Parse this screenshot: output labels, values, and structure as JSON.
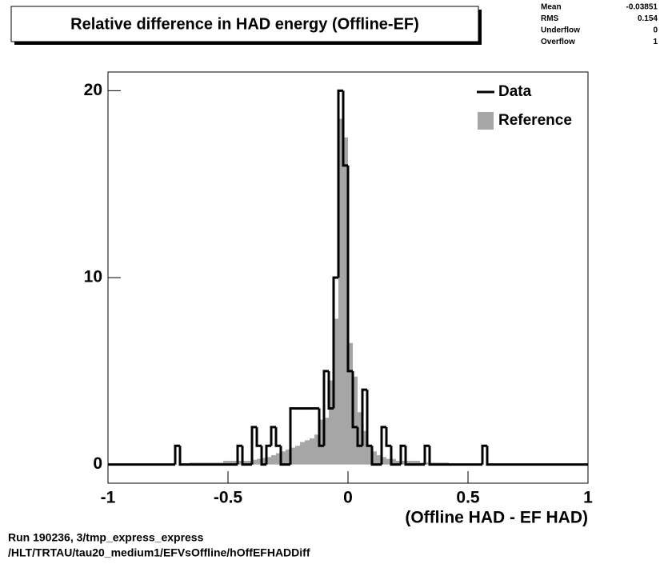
{
  "chart_data": {
    "type": "histogram",
    "title": "Relative difference in HAD energy (Offline-EF)",
    "x_label": "(Offline HAD - EF HAD)",
    "bins": [
      -1,
      -0.98,
      -0.96,
      -0.94,
      -0.92,
      -0.9,
      -0.88,
      -0.86,
      -0.84,
      -0.82,
      -0.8,
      -0.78,
      -0.76,
      -0.74,
      -0.72,
      -0.7,
      -0.68,
      -0.66,
      -0.64,
      -0.62,
      -0.6,
      -0.58,
      -0.56,
      -0.54,
      -0.52,
      -0.5,
      -0.48,
      -0.46,
      -0.44,
      -0.42,
      -0.4,
      -0.38,
      -0.36,
      -0.34,
      -0.32,
      -0.3,
      -0.28,
      -0.26,
      -0.24,
      -0.22,
      -0.2,
      -0.18,
      -0.16,
      -0.14,
      -0.12,
      -0.1,
      -0.08,
      -0.06,
      -0.04,
      -0.02,
      0,
      0.02,
      0.04,
      0.06,
      0.08,
      0.1,
      0.12,
      0.14,
      0.16,
      0.18,
      0.2,
      0.22,
      0.24,
      0.26,
      0.28,
      0.3,
      0.32,
      0.34,
      0.36,
      0.38,
      0.4,
      0.42,
      0.44,
      0.46,
      0.48,
      0.5,
      0.52,
      0.54,
      0.56,
      0.58,
      0.6,
      0.62,
      0.64,
      0.66,
      0.68,
      0.7,
      0.72,
      0.74,
      0.76,
      0.78,
      0.8,
      0.82,
      0.84,
      0.86,
      0.88,
      0.9,
      0.92,
      0.94,
      0.96,
      0.98,
      1
    ],
    "series": [
      {
        "name": "Reference",
        "color": "#a6a6a6",
        "style": "filled",
        "values": [
          0,
          0,
          0,
          0,
          0,
          0,
          0,
          0,
          0,
          0,
          0,
          0,
          0,
          0,
          0,
          0,
          0,
          0.1,
          0.1,
          0.1,
          0.1,
          0.1,
          0.1,
          0.1,
          0.2,
          0.2,
          0.2,
          0.2,
          0.2,
          0.2,
          0.25,
          0.3,
          0.35,
          0.4,
          0.5,
          0.6,
          0.7,
          0.8,
          0.9,
          1,
          1.2,
          1.3,
          1.4,
          1.6,
          2.4,
          2.5,
          4.5,
          7.8,
          18.5,
          17.5,
          6.5,
          4.7,
          2.8,
          1.8,
          1,
          0.7,
          0.5,
          0.4,
          0.3,
          0.3,
          0.2,
          0.2,
          0.2,
          0.2,
          0.2,
          0.1,
          0.1,
          0.1,
          0.1,
          0.1,
          0.1,
          0,
          0,
          0,
          0,
          0,
          0,
          0,
          0,
          0,
          0,
          0,
          0,
          0,
          0,
          0,
          0,
          0,
          0,
          0,
          0,
          0,
          0,
          0,
          0,
          0,
          0,
          0,
          0,
          0
        ]
      },
      {
        "name": "Data",
        "color": "#000000",
        "style": "step",
        "values": [
          0,
          0,
          0,
          0,
          0,
          0,
          0,
          0,
          0,
          0,
          0,
          0,
          0,
          0,
          1,
          0,
          0,
          0,
          0,
          0,
          0,
          0,
          0,
          0,
          0,
          0,
          0,
          1,
          0,
          0,
          2,
          1,
          0,
          1,
          2,
          1,
          0,
          0,
          3,
          3,
          3,
          3,
          3,
          3,
          1,
          5,
          3,
          10,
          20,
          16,
          5,
          2,
          1,
          4,
          1,
          0,
          0,
          2,
          1,
          0,
          0,
          1,
          0,
          0,
          0,
          0,
          1,
          0,
          0,
          0,
          0,
          0,
          0,
          0,
          0,
          0,
          0,
          0,
          1,
          0,
          0,
          0,
          0,
          0,
          0,
          0,
          0,
          0,
          0,
          0,
          0,
          0,
          0,
          0,
          0,
          0,
          0,
          0,
          0,
          0
        ]
      }
    ],
    "xlim": [
      -1,
      1
    ],
    "xticks": [
      -1,
      -0.5,
      0,
      0.5,
      1
    ],
    "ylim": [
      -1,
      21
    ],
    "yticks": [
      0,
      10,
      20
    ],
    "legend": "top-right",
    "stats": [
      {
        "name": "Mean",
        "value": -0.03851
      },
      {
        "name": "RMS",
        "value": 0.154
      },
      {
        "name": "Underflow",
        "value": 0
      },
      {
        "name": "Overflow",
        "value": 1
      }
    ]
  },
  "footer": {
    "run": "Run 190236, 3/tmp_express_express",
    "path": "/HLT/TRTAU/tau20_medium1/EFVsOffline/hOffEFHADDiff"
  }
}
